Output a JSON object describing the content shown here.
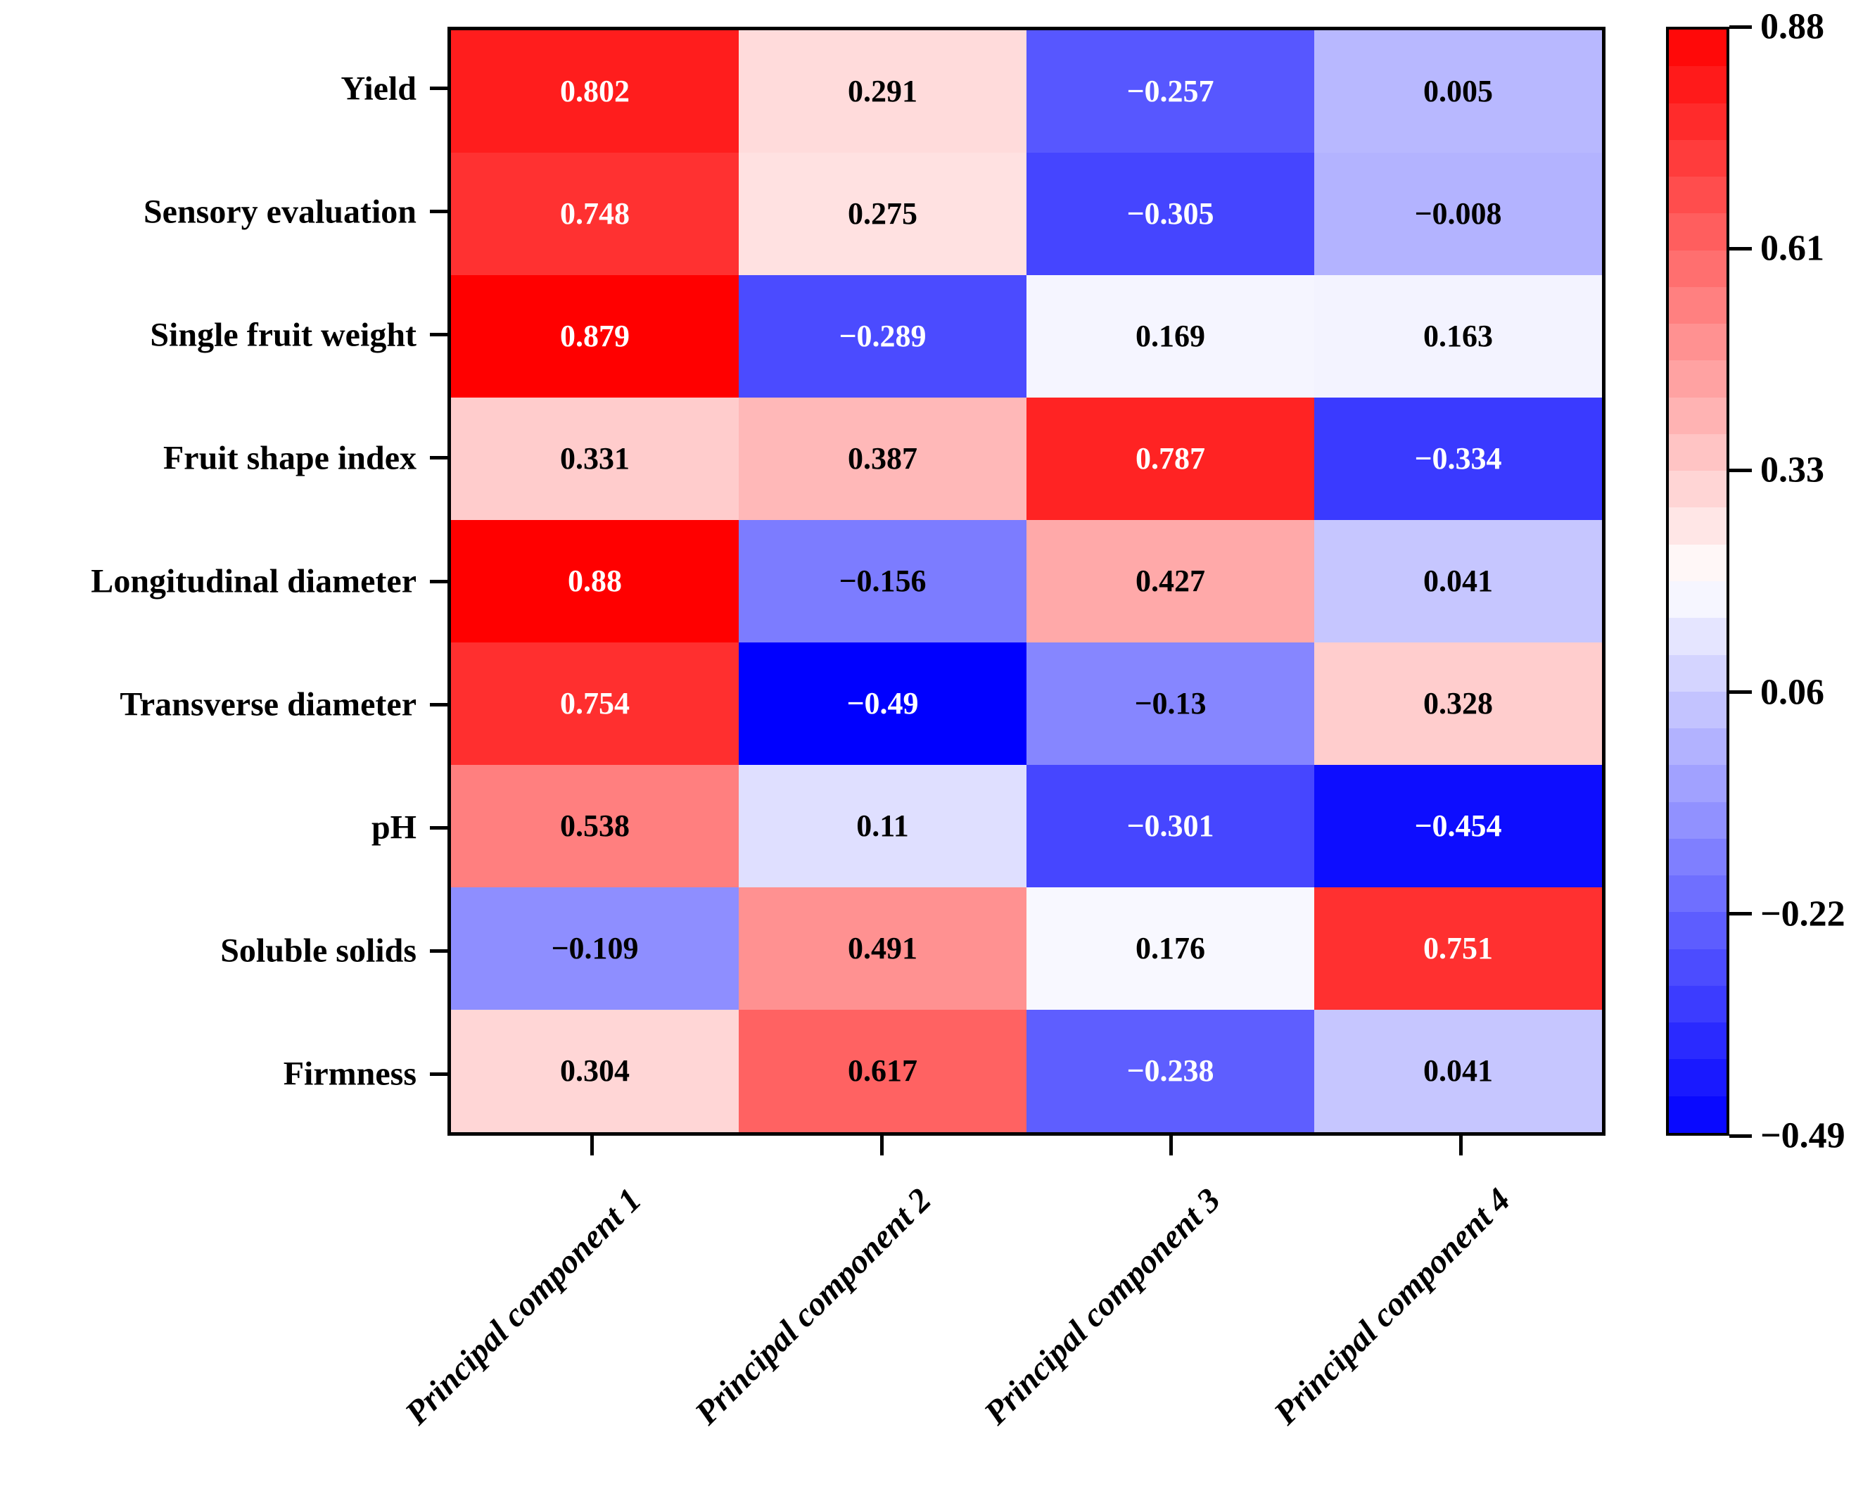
{
  "figure": {
    "background": "#FFFFFF",
    "frame_color": "#000000"
  },
  "chart_data": {
    "type": "heatmap",
    "rows": [
      "Yield",
      "Sensory evaluation",
      "Single fruit weight",
      "Fruit shape index",
      "Longitudinal diameter",
      "Transverse diameter",
      "pH",
      "Soluble solids",
      "Firmness"
    ],
    "columns": [
      "Principal component 1",
      "Principal component 2",
      "Principal component 3",
      "Principal component 4"
    ],
    "values": [
      [
        0.802,
        0.291,
        -0.257,
        0.005
      ],
      [
        0.748,
        0.275,
        -0.305,
        -0.008
      ],
      [
        0.879,
        -0.289,
        0.169,
        0.163
      ],
      [
        0.331,
        0.387,
        0.787,
        -0.334
      ],
      [
        0.88,
        -0.156,
        0.427,
        0.041
      ],
      [
        0.754,
        -0.49,
        -0.13,
        0.328
      ],
      [
        0.538,
        0.11,
        -0.301,
        -0.454
      ],
      [
        -0.109,
        0.491,
        0.176,
        0.751
      ],
      [
        0.304,
        0.617,
        -0.238,
        0.041
      ]
    ],
    "labels": [
      [
        "0.802",
        "0.291",
        "−0.257",
        "0.005"
      ],
      [
        "0.748",
        "0.275",
        "−0.305",
        "−0.008"
      ],
      [
        "0.879",
        "−0.289",
        "0.169",
        "0.163"
      ],
      [
        "0.331",
        "0.387",
        "0.787",
        "−0.334"
      ],
      [
        "0.88",
        "−0.156",
        "0.427",
        "0.041"
      ],
      [
        "0.754",
        "−0.49",
        "−0.13",
        "0.328"
      ],
      [
        "0.538",
        "0.11",
        "−0.301",
        "−0.454"
      ],
      [
        "−0.109",
        "0.491",
        "0.176",
        "0.751"
      ],
      [
        "0.304",
        "0.617",
        "−0.238",
        "0.041"
      ]
    ],
    "colormap": {
      "name": "bwr",
      "low": "#0000FF",
      "mid": "#FFFFFF",
      "high": "#FF0000",
      "vmin": -0.49,
      "vmax": 0.88
    },
    "cell_text_colors": {
      "light": "#FFFFFF",
      "dark": "#000000"
    },
    "colorbar": {
      "steps": 30,
      "ticks": [
        "0.88",
        "0.61",
        "0.33",
        "0.06",
        "−0.22",
        "−0.49"
      ],
      "tick_values": [
        0.88,
        0.606,
        0.332,
        0.058,
        -0.216,
        -0.49
      ],
      "legend_position": "right"
    },
    "grid": false,
    "title": "",
    "xlabel": "",
    "ylabel": ""
  }
}
